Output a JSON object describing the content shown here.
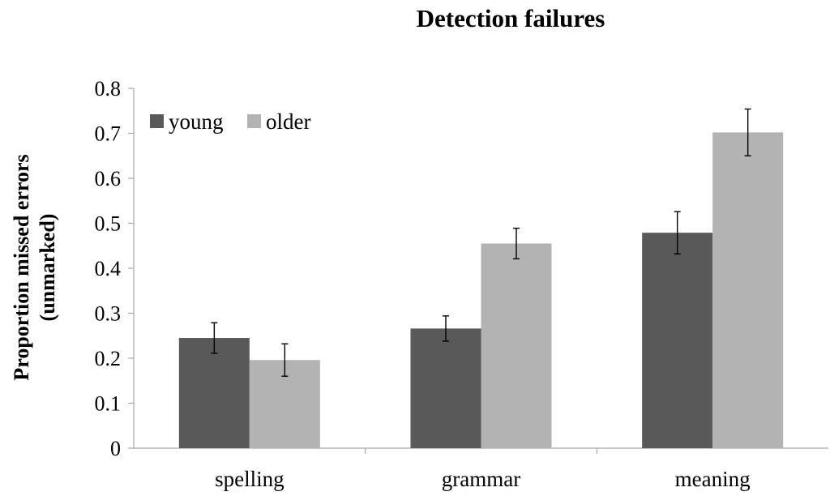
{
  "chart_data": {
    "type": "bar",
    "title": "Detection failures",
    "ylabel_lines": [
      "Proportion missed errors",
      "(unmarked)"
    ],
    "xlabel": "",
    "categories": [
      "spelling",
      "grammar",
      "meaning"
    ],
    "ylim": [
      0,
      0.8
    ],
    "yticks": [
      "0",
      "0.1",
      "0.2",
      "0.3",
      "0.4",
      "0.5",
      "0.6",
      "0.7",
      "0.8"
    ],
    "grid": false,
    "legend_position": "top-left",
    "series": [
      {
        "name": "young",
        "color": "#595959",
        "values": [
          0.245,
          0.266,
          0.479
        ],
        "error": [
          0.034,
          0.028,
          0.047
        ]
      },
      {
        "name": "older",
        "color": "#b3b3b3",
        "values": [
          0.196,
          0.455,
          0.702
        ],
        "error": [
          0.036,
          0.034,
          0.052
        ]
      }
    ]
  }
}
